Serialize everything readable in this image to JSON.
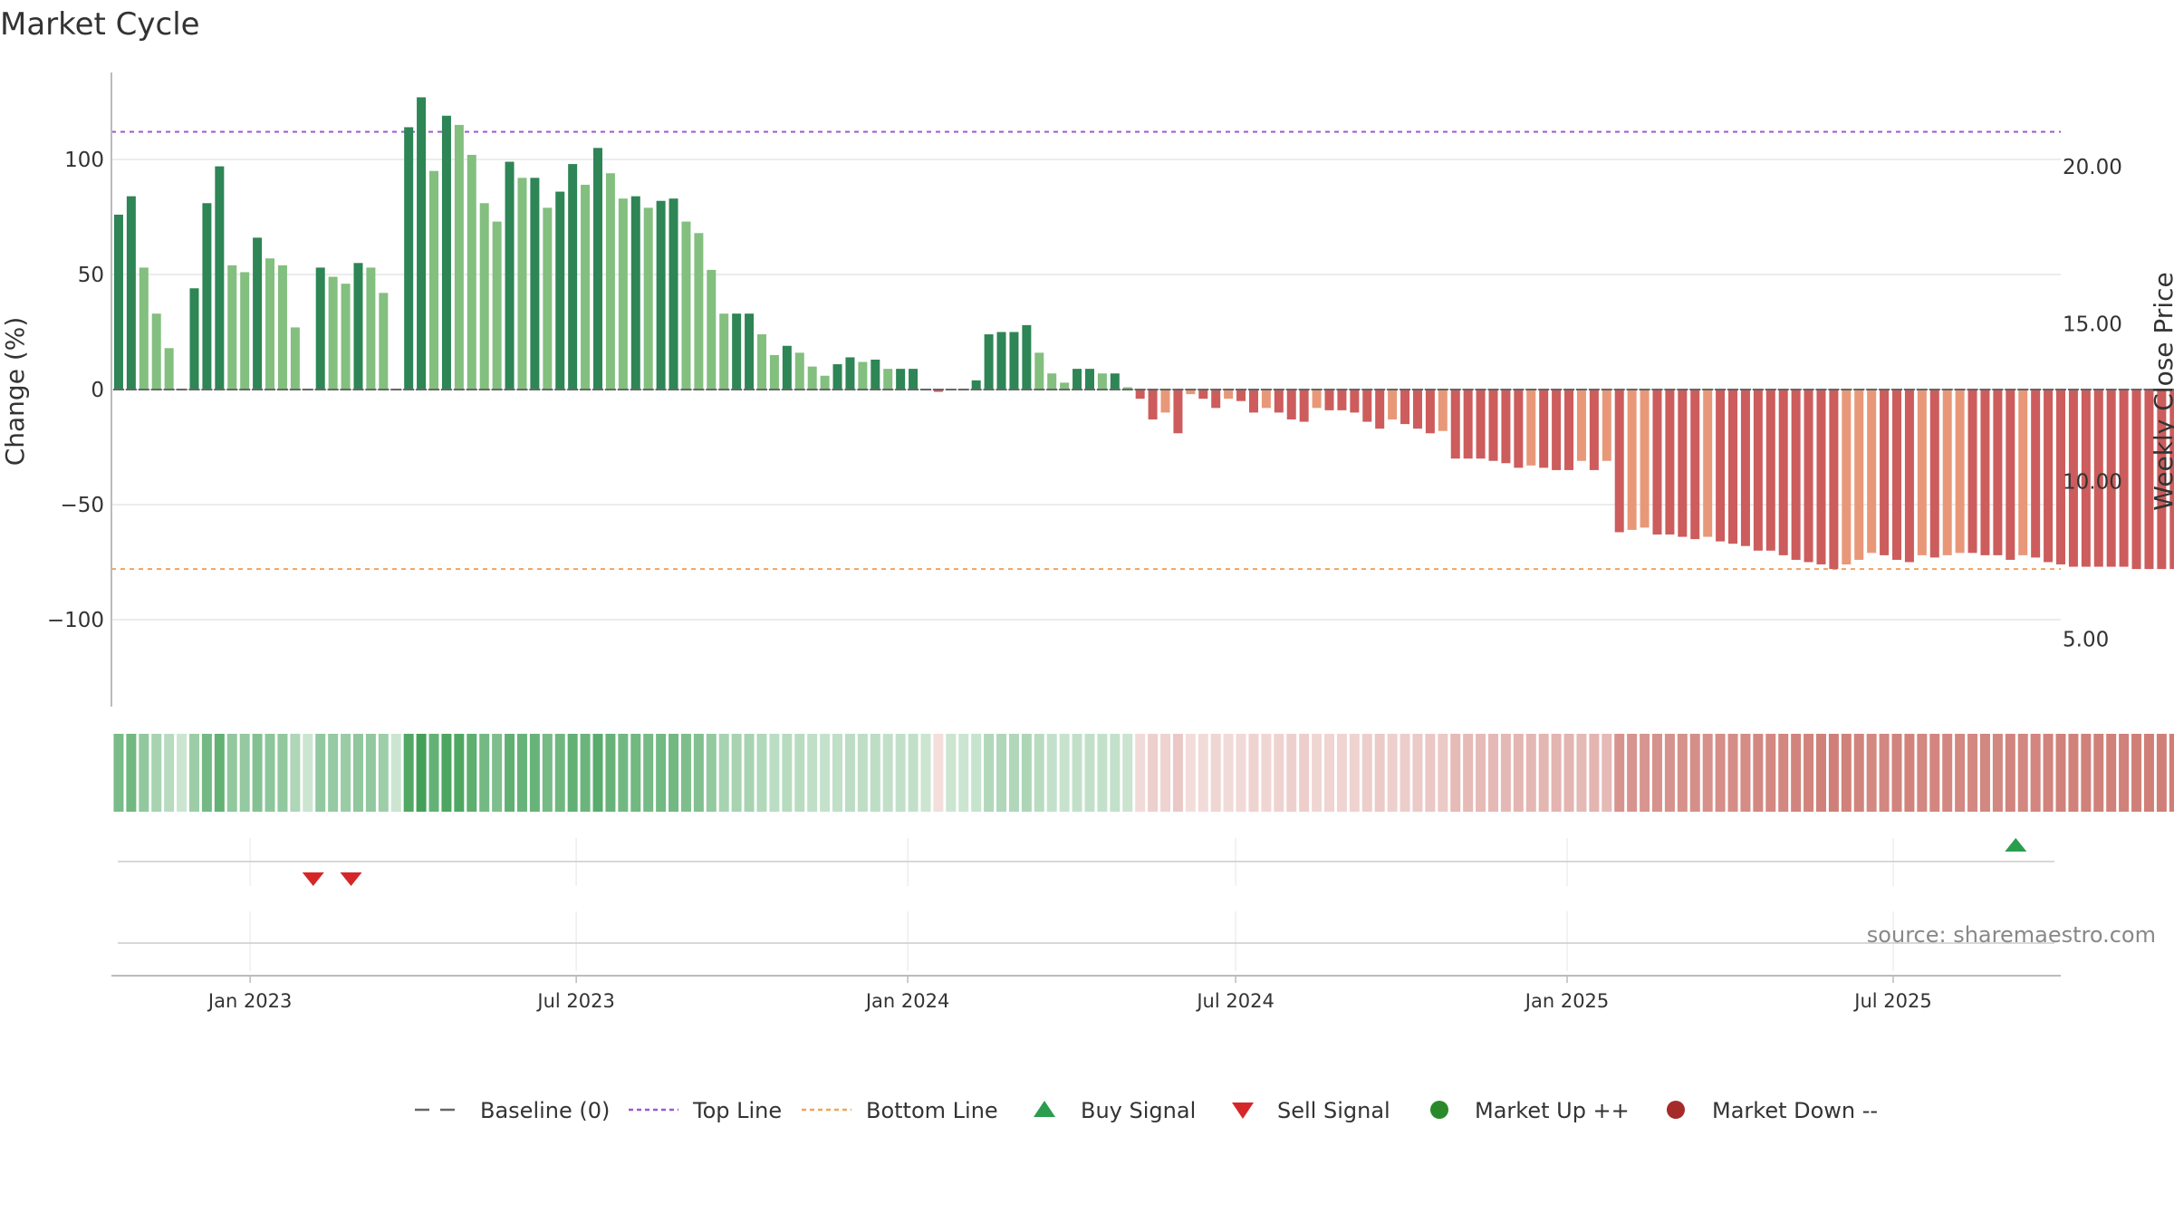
{
  "chart_data": {
    "type": "bar",
    "title": "Market Cycle",
    "ylabel": "Change (%)",
    "y2label": "Weekly Close Price",
    "source": "source: sharemaestro.com",
    "ylim": [
      -138,
      138
    ],
    "y2lim": [
      2.84,
      23.0
    ],
    "yticks": [
      100,
      50,
      0,
      -50,
      -100
    ],
    "ytick_labels": [
      "100",
      "50",
      "0",
      "−50",
      "−100"
    ],
    "y2ticks": [
      20,
      15,
      10,
      5
    ],
    "y2tick_labels": [
      "20.00",
      "15.00",
      "10.00",
      "5.00"
    ],
    "top_line": 112,
    "bottom_line": -78,
    "x_start": "2022-10-16",
    "x_end": "2025-10-02",
    "xticks": [
      {
        "date": "2023-01-01",
        "label": "Jan 2023"
      },
      {
        "date": "2023-07-01",
        "label": "Jul 2023"
      },
      {
        "date": "2024-01-01",
        "label": "Jan 2024"
      },
      {
        "date": "2024-07-01",
        "label": "Jul 2024"
      },
      {
        "date": "2025-01-01",
        "label": "Jan 2025"
      },
      {
        "date": "2025-07-01",
        "label": "Jul 2025"
      }
    ],
    "first_week": "2022-10-20",
    "week_days": 7,
    "values": [
      76,
      84,
      53,
      33,
      18,
      0,
      44,
      81,
      97,
      54,
      51,
      66,
      57,
      54,
      27,
      0,
      53,
      49,
      46,
      55,
      53,
      42,
      0,
      114,
      127,
      95,
      119,
      115,
      102,
      81,
      73,
      99,
      92,
      92,
      79,
      86,
      98,
      89,
      105,
      94,
      83,
      84,
      79,
      82,
      83,
      73,
      68,
      52,
      33,
      33,
      33,
      24,
      15,
      19,
      16,
      10,
      6,
      11,
      14,
      12,
      13,
      9,
      9,
      9,
      0,
      -1,
      0,
      0,
      4,
      24,
      25,
      25,
      28,
      16,
      7,
      3,
      9,
      9,
      7,
      7,
      1,
      -4,
      -13,
      -10,
      -19,
      -2,
      -4,
      -8,
      -4,
      -5,
      -10,
      -8,
      -10,
      -13,
      -14,
      -8,
      -9,
      -9,
      -10,
      -14,
      -17,
      -13,
      -15,
      -17,
      -19,
      -18,
      -30,
      -30,
      -30,
      -31,
      -32,
      -34,
      -33,
      -34,
      -35,
      -35,
      -31,
      -35,
      -31,
      -62,
      -61,
      -60,
      -63,
      -63,
      -64,
      -65,
      -64,
      -66,
      -67,
      -68,
      -70,
      -70,
      -72,
      -74,
      -75,
      -76,
      -78,
      -76,
      -74,
      -71,
      -72,
      -74,
      -75,
      -72,
      -73,
      -72,
      -71,
      -71,
      -72,
      -72,
      -74,
      -72,
      -73,
      -75,
      -76,
      -77,
      -77,
      -77,
      -77,
      -77,
      -78,
      -78,
      -78,
      -78
    ],
    "signals": [
      {
        "type": "sell",
        "date": "2023-02-05"
      },
      {
        "type": "sell",
        "date": "2023-02-26"
      },
      {
        "type": "buy",
        "date": "2025-09-07"
      }
    ],
    "legend": [
      {
        "key": "baseline",
        "label": "Baseline (0)",
        "color": "#666666"
      },
      {
        "key": "top",
        "label": "Top Line",
        "color": "#9b59d0"
      },
      {
        "key": "bottom",
        "label": "Bottom Line",
        "color": "#f0a35e"
      },
      {
        "key": "buy",
        "label": "Buy Signal",
        "color": "#2a9d4e"
      },
      {
        "key": "sell",
        "label": "Sell Signal",
        "color": "#d62728"
      },
      {
        "key": "up",
        "label": "Market Up ++",
        "color": "#2a8a2a"
      },
      {
        "key": "down",
        "label": "Market Down --",
        "color": "#a52a2a"
      }
    ],
    "colors": {
      "up_dark": "#2e8555",
      "up_light": "#83bf7f",
      "down_dark": "#cd5c5c",
      "down_light": "#e89878",
      "grid": "#e6e6e6",
      "axis": "#bbbbbb"
    }
  }
}
